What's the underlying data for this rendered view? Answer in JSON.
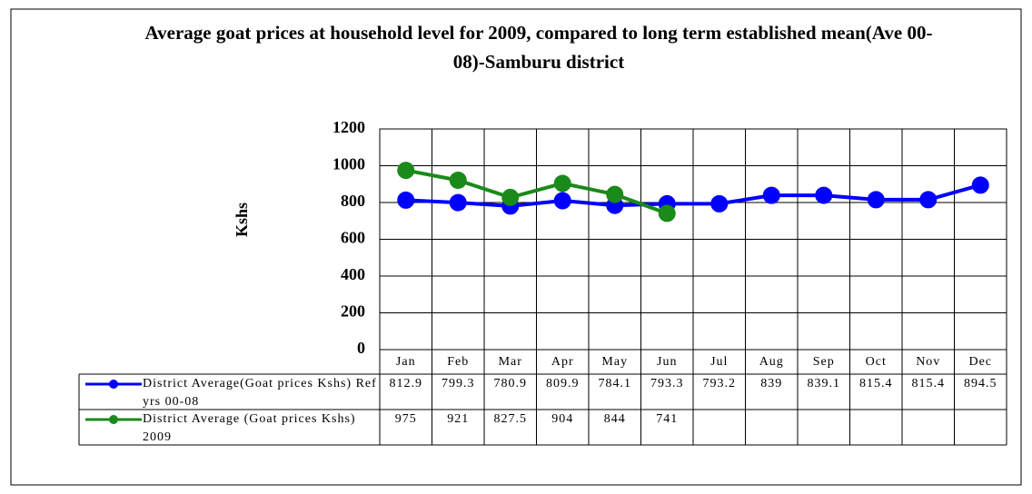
{
  "chart_data": {
    "type": "line",
    "title": "Average goat prices at household level for 2009, compared to long term established mean(Ave 00-08)-Samburu district",
    "y_label": "Kshs",
    "categories": [
      "Jan",
      "Feb",
      "Mar",
      "Apr",
      "May",
      "Jun",
      "Jul",
      "Aug",
      "Sep",
      "Oct",
      "Nov",
      "Dec"
    ],
    "series": [
      {
        "name": "District Average(Goat prices Kshs) Ref yrs 00-08",
        "color": "#0000ff",
        "values": [
          812.9,
          799.3,
          780.9,
          809.9,
          784.1,
          793.3,
          793.2,
          839,
          839.1,
          815.4,
          815.4,
          894.5
        ]
      },
      {
        "name": "District Average (Goat prices Kshs) 2009",
        "color": "#1a8a1a",
        "values": [
          975,
          921,
          827.5,
          904,
          844,
          741,
          null,
          null,
          null,
          null,
          null,
          null
        ]
      }
    ],
    "ylim": [
      0,
      1200
    ],
    "yticks": [
      0,
      200,
      400,
      600,
      800,
      1000,
      1200
    ],
    "grid": true
  }
}
